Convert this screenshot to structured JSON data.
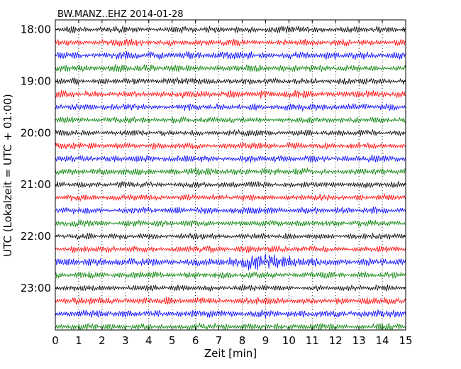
{
  "chart_data": {
    "type": "line",
    "title": "BW.MANZ..EHZ 2014-01-28",
    "xlabel": "Zeit  [min]",
    "ylabel": "UTC (Lokalzeit = UTC + 01:00)",
    "xlim": [
      0,
      15
    ],
    "x_ticks": [
      "0",
      "1",
      "2",
      "3",
      "4",
      "5",
      "6",
      "7",
      "8",
      "9",
      "10",
      "11",
      "12",
      "13",
      "14",
      "15"
    ],
    "y_tick_labels": [
      "18:00",
      "19:00",
      "20:00",
      "21:00",
      "22:00",
      "23:00"
    ],
    "grid": "vertical dotted",
    "trace_colors": [
      "#000000",
      "#ff0000",
      "#0000ff",
      "#007f00"
    ],
    "rows": [
      {
        "start": "18:00",
        "color": "#000000",
        "amplitude": 0.28
      },
      {
        "start": "18:15",
        "color": "#ff0000",
        "amplitude": 0.3
      },
      {
        "start": "18:30",
        "color": "#0000ff",
        "amplitude": 0.34
      },
      {
        "start": "18:45",
        "color": "#007f00",
        "amplitude": 0.3
      },
      {
        "start": "19:00",
        "color": "#000000",
        "amplitude": 0.28
      },
      {
        "start": "19:15",
        "color": "#ff0000",
        "amplitude": 0.32
      },
      {
        "start": "19:30",
        "color": "#0000ff",
        "amplitude": 0.3
      },
      {
        "start": "19:45",
        "color": "#007f00",
        "amplitude": 0.28
      },
      {
        "start": "20:00",
        "color": "#000000",
        "amplitude": 0.26
      },
      {
        "start": "20:15",
        "color": "#ff0000",
        "amplitude": 0.28
      },
      {
        "start": "20:30",
        "color": "#0000ff",
        "amplitude": 0.3
      },
      {
        "start": "20:45",
        "color": "#007f00",
        "amplitude": 0.3
      },
      {
        "start": "21:00",
        "color": "#000000",
        "amplitude": 0.26
      },
      {
        "start": "21:15",
        "color": "#ff0000",
        "amplitude": 0.28
      },
      {
        "start": "21:30",
        "color": "#0000ff",
        "amplitude": 0.3
      },
      {
        "start": "21:45",
        "color": "#007f00",
        "amplitude": 0.28
      },
      {
        "start": "22:00",
        "color": "#000000",
        "amplitude": 0.26
      },
      {
        "start": "22:15",
        "color": "#ff0000",
        "amplitude": 0.28
      },
      {
        "start": "22:30",
        "color": "#0000ff",
        "amplitude": 0.34,
        "burst": {
          "from": 7.0,
          "to": 11.0,
          "amplitude": 0.75
        }
      },
      {
        "start": "22:45",
        "color": "#007f00",
        "amplitude": 0.28
      },
      {
        "start": "23:00",
        "color": "#000000",
        "amplitude": 0.26
      },
      {
        "start": "23:15",
        "color": "#ff0000",
        "amplitude": 0.3
      },
      {
        "start": "23:30",
        "color": "#0000ff",
        "amplitude": 0.32
      },
      {
        "start": "23:45",
        "color": "#007f00",
        "amplitude": 0.28
      }
    ]
  }
}
